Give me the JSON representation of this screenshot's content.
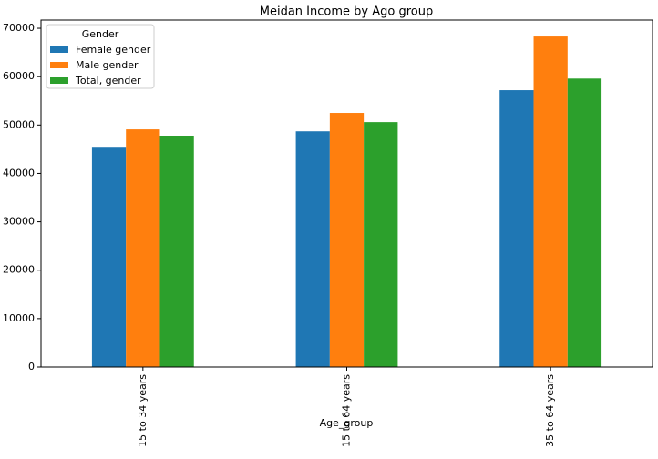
{
  "chart_data": {
    "type": "bar",
    "title": "Meidan Income by Ago group",
    "x_label": "Age_group",
    "categories": [
      "15 to 34 years",
      "15 to 64 years",
      "35 to 64 years"
    ],
    "series": [
      {
        "name": "Female gender",
        "color": "#1f77b4",
        "values": [
          45500,
          48700,
          57200
        ]
      },
      {
        "name": "Male gender",
        "color": "#ff7f0e",
        "values": [
          49100,
          52500,
          68300
        ]
      },
      {
        "name": "Total, gender",
        "color": "#2ca02c",
        "values": [
          47800,
          50600,
          59600
        ]
      }
    ],
    "ylim": [
      0,
      71700
    ],
    "yticks": [
      0,
      10000,
      20000,
      30000,
      40000,
      50000,
      60000,
      70000
    ],
    "legend_title": "Gender",
    "legend": "upper left",
    "grid": false
  }
}
